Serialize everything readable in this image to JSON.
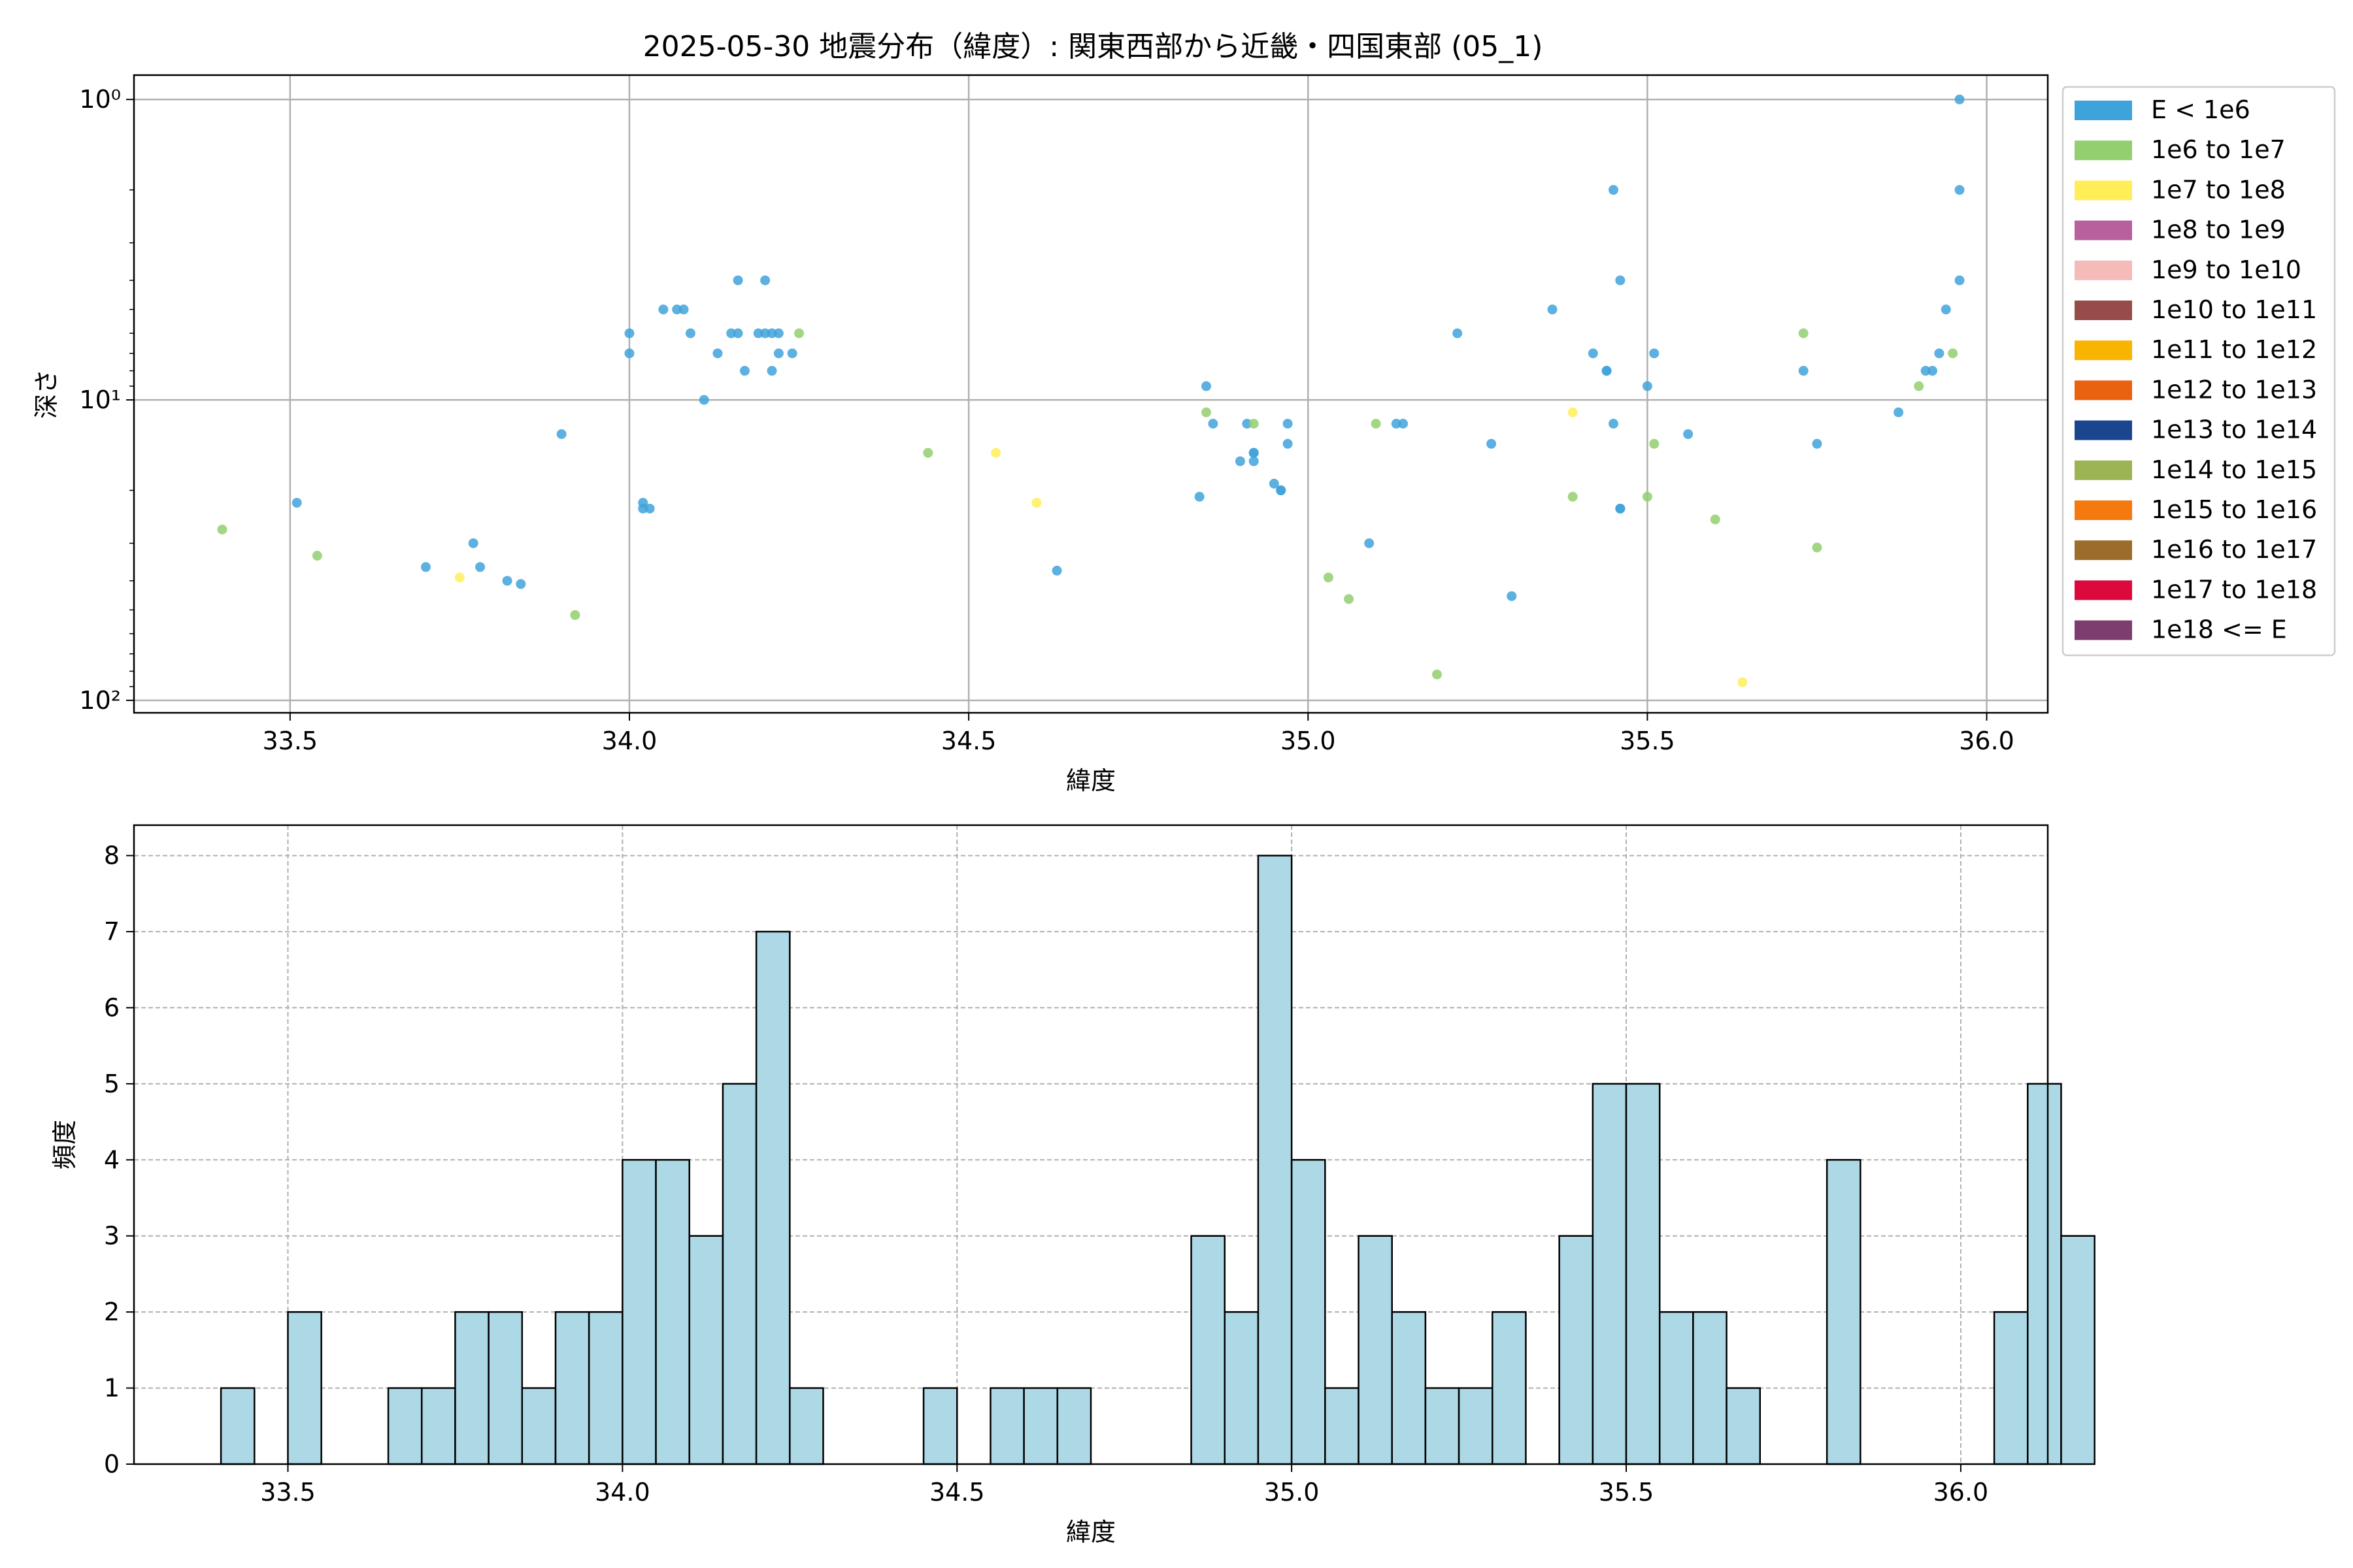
{
  "title": "2025-05-30 地震分布（緯度）: 関東西部から近畿・四国東部 (05_1)",
  "chart_data": [
    {
      "type": "scatter",
      "xlabel": "緯度",
      "ylabel": "深さ",
      "xlim": [
        33.27,
        36.09
      ],
      "ylim": [
        0.83,
        110
      ],
      "y_scale": "log",
      "y_inverted": true,
      "x_ticks": [
        "33.5",
        "34.0",
        "34.5",
        "35.0",
        "35.5",
        "36.0"
      ],
      "x_tick_values": [
        33.5,
        34.0,
        34.5,
        35.0,
        35.5,
        36.0
      ],
      "y_tick_values": [
        1,
        10,
        100
      ],
      "y_ticks": [
        "10⁰",
        "10¹",
        "10²"
      ],
      "grid": true,
      "legend_position": "outside-right",
      "legend": [
        {
          "label": "E < 1e6",
          "color": "#3FA3DB"
        },
        {
          "label": "1e6 to 1e7",
          "color": "#93CF6F"
        },
        {
          "label": "1e7 to 1e8",
          "color": "#FFEE58"
        },
        {
          "label": "1e8 to 1e9",
          "color": "#B8609E"
        },
        {
          "label": "1e9 to 1e10",
          "color": "#F4BBB8"
        },
        {
          "label": "1e10 to 1e11",
          "color": "#974C4A"
        },
        {
          "label": "1e11 to 1e12",
          "color": "#F8B400"
        },
        {
          "label": "1e12 to 1e13",
          "color": "#E9620F"
        },
        {
          "label": "1e13 to 1e14",
          "color": "#1B468F"
        },
        {
          "label": "1e14 to 1e15",
          "color": "#9CB453"
        },
        {
          "label": "1e15 to 1e16",
          "color": "#F4790F"
        },
        {
          "label": "1e16 to 1e17",
          "color": "#9B6C2A"
        },
        {
          "label": "1e17 to 1e18",
          "color": "#DC0A3C"
        },
        {
          "label": "1e18 <= E",
          "color": "#7D3E6F"
        }
      ],
      "points": [
        [
          33.4,
          27,
          1
        ],
        [
          33.51,
          22,
          0
        ],
        [
          33.54,
          33,
          1
        ],
        [
          33.7,
          36,
          0
        ],
        [
          33.75,
          39,
          2
        ],
        [
          33.77,
          30,
          0
        ],
        [
          33.78,
          36,
          0
        ],
        [
          33.82,
          40,
          0
        ],
        [
          33.84,
          41,
          0
        ],
        [
          33.9,
          13,
          0
        ],
        [
          33.92,
          52,
          1
        ],
        [
          34.0,
          6,
          0
        ],
        [
          34.0,
          7,
          0
        ],
        [
          34.02,
          22,
          0
        ],
        [
          34.02,
          23,
          0
        ],
        [
          34.03,
          23,
          0
        ],
        [
          34.05,
          5,
          0
        ],
        [
          34.07,
          5,
          0
        ],
        [
          34.08,
          5,
          0
        ],
        [
          34.09,
          6,
          0
        ],
        [
          34.11,
          10,
          0
        ],
        [
          34.13,
          7,
          0
        ],
        [
          34.15,
          6,
          0
        ],
        [
          34.16,
          4,
          0
        ],
        [
          34.16,
          6,
          0
        ],
        [
          34.17,
          8,
          0
        ],
        [
          34.19,
          6,
          0
        ],
        [
          34.2,
          4,
          0
        ],
        [
          34.2,
          6,
          0
        ],
        [
          34.21,
          6,
          0
        ],
        [
          34.22,
          6,
          0
        ],
        [
          34.21,
          8,
          0
        ],
        [
          34.22,
          7,
          0
        ],
        [
          34.24,
          7,
          0
        ],
        [
          34.25,
          6,
          1
        ],
        [
          34.44,
          15,
          1
        ],
        [
          34.54,
          15,
          2
        ],
        [
          34.6,
          22,
          2
        ],
        [
          34.63,
          37,
          0
        ],
        [
          34.84,
          21,
          0
        ],
        [
          34.85,
          9,
          0
        ],
        [
          34.85,
          11,
          1
        ],
        [
          34.86,
          12,
          0
        ],
        [
          34.9,
          16,
          0
        ],
        [
          34.91,
          12,
          0
        ],
        [
          34.92,
          12,
          1
        ],
        [
          34.92,
          15,
          0
        ],
        [
          34.92,
          15,
          0
        ],
        [
          34.92,
          16,
          0
        ],
        [
          34.95,
          19,
          0
        ],
        [
          34.96,
          20,
          0
        ],
        [
          34.96,
          20,
          0
        ],
        [
          34.97,
          12,
          0
        ],
        [
          34.97,
          14,
          0
        ],
        [
          35.03,
          39,
          1
        ],
        [
          35.06,
          46,
          1
        ],
        [
          35.09,
          30,
          0
        ],
        [
          35.1,
          12,
          1
        ],
        [
          35.13,
          12,
          0
        ],
        [
          35.14,
          12,
          0
        ],
        [
          35.19,
          82,
          1
        ],
        [
          35.22,
          6,
          0
        ],
        [
          35.27,
          14,
          0
        ],
        [
          35.3,
          45,
          0
        ],
        [
          35.36,
          5,
          0
        ],
        [
          35.39,
          11,
          2
        ],
        [
          35.39,
          21,
          1
        ],
        [
          35.42,
          7,
          0
        ],
        [
          35.44,
          8,
          0
        ],
        [
          35.44,
          8,
          0
        ],
        [
          35.45,
          2,
          0
        ],
        [
          35.45,
          12,
          0
        ],
        [
          35.46,
          4,
          0
        ],
        [
          35.46,
          23,
          0
        ],
        [
          35.46,
          23,
          0
        ],
        [
          35.5,
          9,
          0
        ],
        [
          35.5,
          21,
          1
        ],
        [
          35.51,
          7,
          0
        ],
        [
          35.51,
          14,
          1
        ],
        [
          35.56,
          13,
          0
        ],
        [
          35.6,
          25,
          1
        ],
        [
          35.64,
          87,
          2
        ],
        [
          35.73,
          6,
          1
        ],
        [
          35.73,
          8,
          0
        ],
        [
          35.75,
          14,
          0
        ],
        [
          35.75,
          31,
          1
        ],
        [
          35.87,
          11,
          0
        ],
        [
          35.9,
          9,
          1
        ],
        [
          35.91,
          8,
          0
        ],
        [
          35.92,
          8,
          0
        ],
        [
          35.93,
          7,
          0
        ],
        [
          35.94,
          5,
          0
        ],
        [
          35.95,
          7,
          1
        ],
        [
          35.96,
          1,
          0
        ],
        [
          35.96,
          2,
          0
        ],
        [
          35.96,
          4,
          0
        ]
      ]
    },
    {
      "type": "bar",
      "subtype": "histogram",
      "xlabel": "緯度",
      "ylabel": "頻度",
      "xlim": [
        33.27,
        36.13
      ],
      "ylim": [
        0,
        8.4
      ],
      "x_ticks": [
        "33.5",
        "34.0",
        "34.5",
        "35.0",
        "35.5",
        "36.0"
      ],
      "x_tick_values": [
        33.5,
        34.0,
        34.5,
        35.0,
        35.5,
        36.0
      ],
      "y_ticks": [
        "0",
        "1",
        "2",
        "3",
        "4",
        "5",
        "6",
        "7",
        "8"
      ],
      "grid": true,
      "bar_color": "#ADD8E6",
      "bin_start": 33.4,
      "bin_width": 0.05,
      "counts": [
        1,
        0,
        2,
        0,
        0,
        1,
        1,
        2,
        2,
        1,
        2,
        2,
        4,
        4,
        3,
        5,
        7,
        1,
        0,
        0,
        0,
        1,
        0,
        1,
        1,
        1,
        0,
        0,
        0,
        3,
        2,
        8,
        4,
        1,
        3,
        2,
        1,
        1,
        2,
        0,
        3,
        5,
        5,
        2,
        2,
        1,
        0,
        0,
        4,
        0,
        0,
        0,
        0,
        2,
        5,
        3
      ]
    }
  ]
}
